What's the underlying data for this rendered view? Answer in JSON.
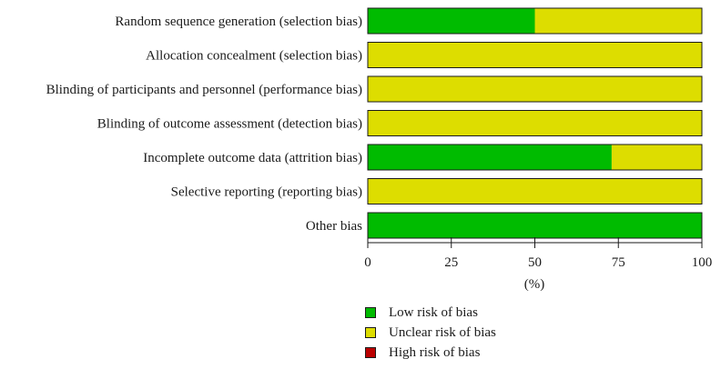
{
  "chart_data": {
    "type": "bar",
    "orientation": "horizontal",
    "stacked": true,
    "categories": [
      "Random sequence generation (selection bias)",
      "Allocation concealment (selection bias)",
      "Blinding of participants and personnel (performance bias)",
      "Blinding of outcome assessment (detection bias)",
      "Incomplete outcome data (attrition bias)",
      "Selective reporting (reporting bias)",
      "Other bias"
    ],
    "series": [
      {
        "name": "Low risk of bias",
        "color": "#00bb00",
        "values": [
          50,
          0,
          0,
          0,
          73,
          0,
          100
        ]
      },
      {
        "name": "Unclear risk of bias",
        "color": "#dddd00",
        "values": [
          50,
          100,
          100,
          100,
          27,
          100,
          0
        ]
      },
      {
        "name": "High risk of bias",
        "color": "#bb0000",
        "values": [
          0,
          0,
          0,
          0,
          0,
          0,
          0
        ]
      }
    ],
    "xlabel": "(%)",
    "xlim": [
      0,
      100
    ],
    "xticks": [
      0,
      25,
      50,
      75,
      100
    ],
    "grid": false,
    "legend_position": "bottom"
  }
}
